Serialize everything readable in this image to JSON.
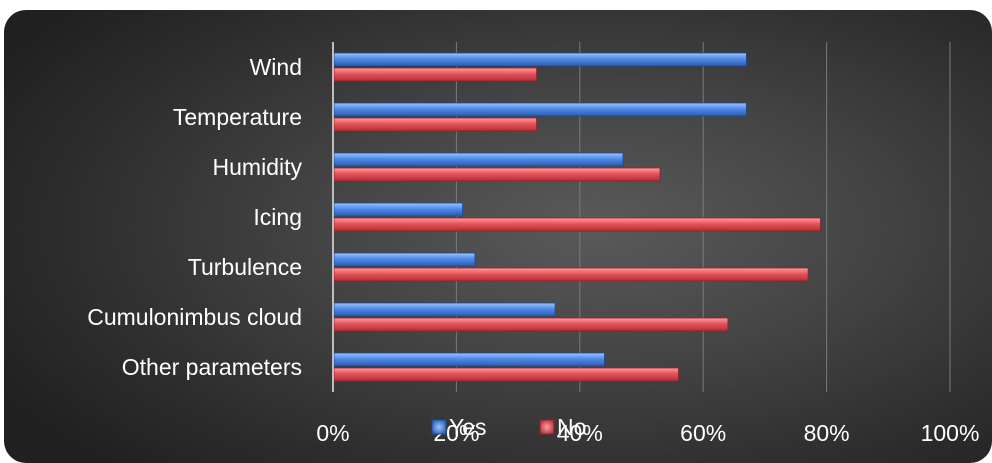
{
  "chart_data": {
    "type": "bar",
    "orientation": "horizontal",
    "categories": [
      "Wind",
      "Temperature",
      "Humidity",
      "Icing",
      "Turbulence",
      "Cumulonimbus cloud",
      "Other parameters"
    ],
    "series": [
      {
        "name": "Yes",
        "color": "#4a86e0",
        "values": [
          67,
          67,
          47,
          21,
          23,
          36,
          44
        ]
      },
      {
        "name": "No",
        "color": "#e5545a",
        "values": [
          33,
          33,
          53,
          79,
          77,
          64,
          56
        ]
      }
    ],
    "xlim": [
      0,
      100
    ],
    "xticks": [
      0,
      20,
      40,
      60,
      80,
      100
    ],
    "tick_labels": [
      "0%",
      "20%",
      "40%",
      "60%",
      "80%",
      "100%"
    ],
    "value_unit": "%",
    "grid": true,
    "legend_position": "bottom",
    "title": "",
    "xlabel": "",
    "ylabel": ""
  }
}
